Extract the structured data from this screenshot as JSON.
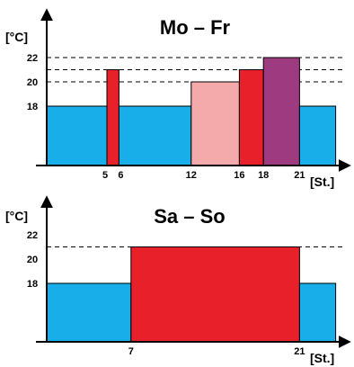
{
  "chart_data": [
    {
      "type": "bar",
      "title": "Mo – Fr",
      "ylabel": "[°C]",
      "xlabel": "[St.]",
      "x_ticks": [
        5,
        6,
        12,
        16,
        18,
        21
      ],
      "y_ticks": [
        18,
        20,
        22
      ],
      "dashed_levels": [
        20,
        21,
        22
      ],
      "bars": [
        {
          "start": 0,
          "end": 5,
          "value": 18,
          "color": "#17aeea"
        },
        {
          "start": 5,
          "end": 6,
          "value": 21,
          "color": "#e8202a"
        },
        {
          "start": 6,
          "end": 12,
          "value": 18,
          "color": "#17aeea"
        },
        {
          "start": 12,
          "end": 16,
          "value": 20,
          "color": "#f4aaaa"
        },
        {
          "start": 16,
          "end": 18,
          "value": 21,
          "color": "#e8202a"
        },
        {
          "start": 18,
          "end": 21,
          "value": 22,
          "color": "#9e3a80"
        },
        {
          "start": 21,
          "end": 24,
          "value": 18,
          "color": "#17aeea"
        }
      ]
    },
    {
      "type": "bar",
      "title": "Sa – So",
      "ylabel": "[°C]",
      "xlabel": "[St.]",
      "x_ticks": [
        7,
        21
      ],
      "y_ticks": [
        18,
        20,
        22
      ],
      "dashed_levels": [
        21
      ],
      "bars": [
        {
          "start": 0,
          "end": 7,
          "value": 18,
          "color": "#17aeea"
        },
        {
          "start": 7,
          "end": 21,
          "value": 21,
          "color": "#e8202a"
        },
        {
          "start": 21,
          "end": 24,
          "value": 18,
          "color": "#17aeea"
        }
      ]
    }
  ]
}
